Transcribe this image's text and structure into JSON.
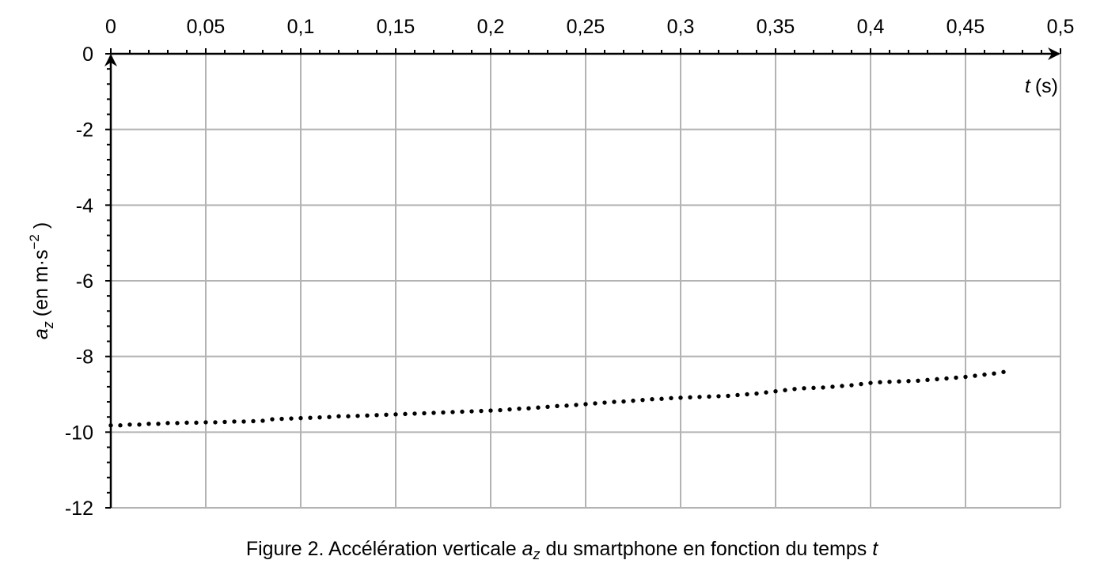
{
  "chart_data": {
    "type": "scatter",
    "xlabel": {
      "var": "t",
      "unit": "(s)"
    },
    "ylabel": {
      "var": "a",
      "sub": "z",
      "unit_prefix": "(en m·s",
      "unit_exp": "−2",
      "unit_suffix": " )"
    },
    "xlim": [
      0,
      0.5
    ],
    "ylim": [
      -12,
      0
    ],
    "x_ticks": [
      0,
      0.05,
      0.1,
      0.15,
      0.2,
      0.25,
      0.3,
      0.35,
      0.4,
      0.45,
      0.5
    ],
    "x_tick_labels": [
      "0",
      "0,05",
      "0,1",
      "0,15",
      "0,2",
      "0,25",
      "0,3",
      "0,35",
      "0,4",
      "0,45",
      "0,5"
    ],
    "y_ticks": [
      0,
      -2,
      -4,
      -6,
      -8,
      -10,
      -12
    ],
    "y_tick_labels": [
      "0",
      "-2",
      "-4",
      "-6",
      "-8",
      "-10",
      "-12"
    ],
    "x_axis_position": "top",
    "grid": true,
    "series": [
      {
        "x": [
          0.0,
          0.005,
          0.01,
          0.015,
          0.02,
          0.025,
          0.03,
          0.035,
          0.04,
          0.045,
          0.05,
          0.055,
          0.06,
          0.065,
          0.07,
          0.075,
          0.08,
          0.085,
          0.09,
          0.095,
          0.1,
          0.105,
          0.11,
          0.115,
          0.12,
          0.125,
          0.13,
          0.135,
          0.14,
          0.145,
          0.15,
          0.155,
          0.16,
          0.165,
          0.17,
          0.175,
          0.18,
          0.185,
          0.19,
          0.195,
          0.2,
          0.205,
          0.21,
          0.215,
          0.22,
          0.225,
          0.23,
          0.235,
          0.24,
          0.245,
          0.25,
          0.255,
          0.26,
          0.265,
          0.27,
          0.275,
          0.28,
          0.285,
          0.29,
          0.295,
          0.3,
          0.305,
          0.31,
          0.315,
          0.32,
          0.325,
          0.33,
          0.335,
          0.34,
          0.345,
          0.35,
          0.355,
          0.36,
          0.365,
          0.37,
          0.375,
          0.38,
          0.385,
          0.39,
          0.395,
          0.4,
          0.405,
          0.41,
          0.415,
          0.42,
          0.425,
          0.43,
          0.435,
          0.44,
          0.445,
          0.45,
          0.455,
          0.46,
          0.465,
          0.47
        ],
        "y": [
          -9.82,
          -9.82,
          -9.8,
          -9.8,
          -9.78,
          -9.78,
          -9.76,
          -9.76,
          -9.75,
          -9.75,
          -9.74,
          -9.74,
          -9.73,
          -9.72,
          -9.72,
          -9.71,
          -9.7,
          -9.66,
          -9.65,
          -9.64,
          -9.63,
          -9.62,
          -9.61,
          -9.6,
          -9.58,
          -9.58,
          -9.57,
          -9.56,
          -9.55,
          -9.54,
          -9.53,
          -9.52,
          -9.51,
          -9.5,
          -9.49,
          -9.48,
          -9.47,
          -9.46,
          -9.45,
          -9.44,
          -9.43,
          -9.42,
          -9.4,
          -9.38,
          -9.37,
          -9.35,
          -9.33,
          -9.31,
          -9.3,
          -9.28,
          -9.26,
          -9.24,
          -9.22,
          -9.2,
          -9.19,
          -9.17,
          -9.15,
          -9.13,
          -9.12,
          -9.1,
          -9.09,
          -9.08,
          -9.07,
          -9.06,
          -9.05,
          -9.04,
          -9.02,
          -9.0,
          -8.98,
          -8.95,
          -8.92,
          -8.89,
          -8.86,
          -8.84,
          -8.83,
          -8.82,
          -8.8,
          -8.78,
          -8.76,
          -8.73,
          -8.7,
          -8.68,
          -8.67,
          -8.66,
          -8.65,
          -8.64,
          -8.62,
          -8.6,
          -8.58,
          -8.56,
          -8.54,
          -8.51,
          -8.48,
          -8.45,
          -8.41
        ]
      }
    ]
  },
  "caption": {
    "prefix": "Figure 2. Accélération verticale ",
    "var": "a",
    "sub": "z",
    "middle": " du smartphone en fonction du temps ",
    "var2": "t"
  }
}
